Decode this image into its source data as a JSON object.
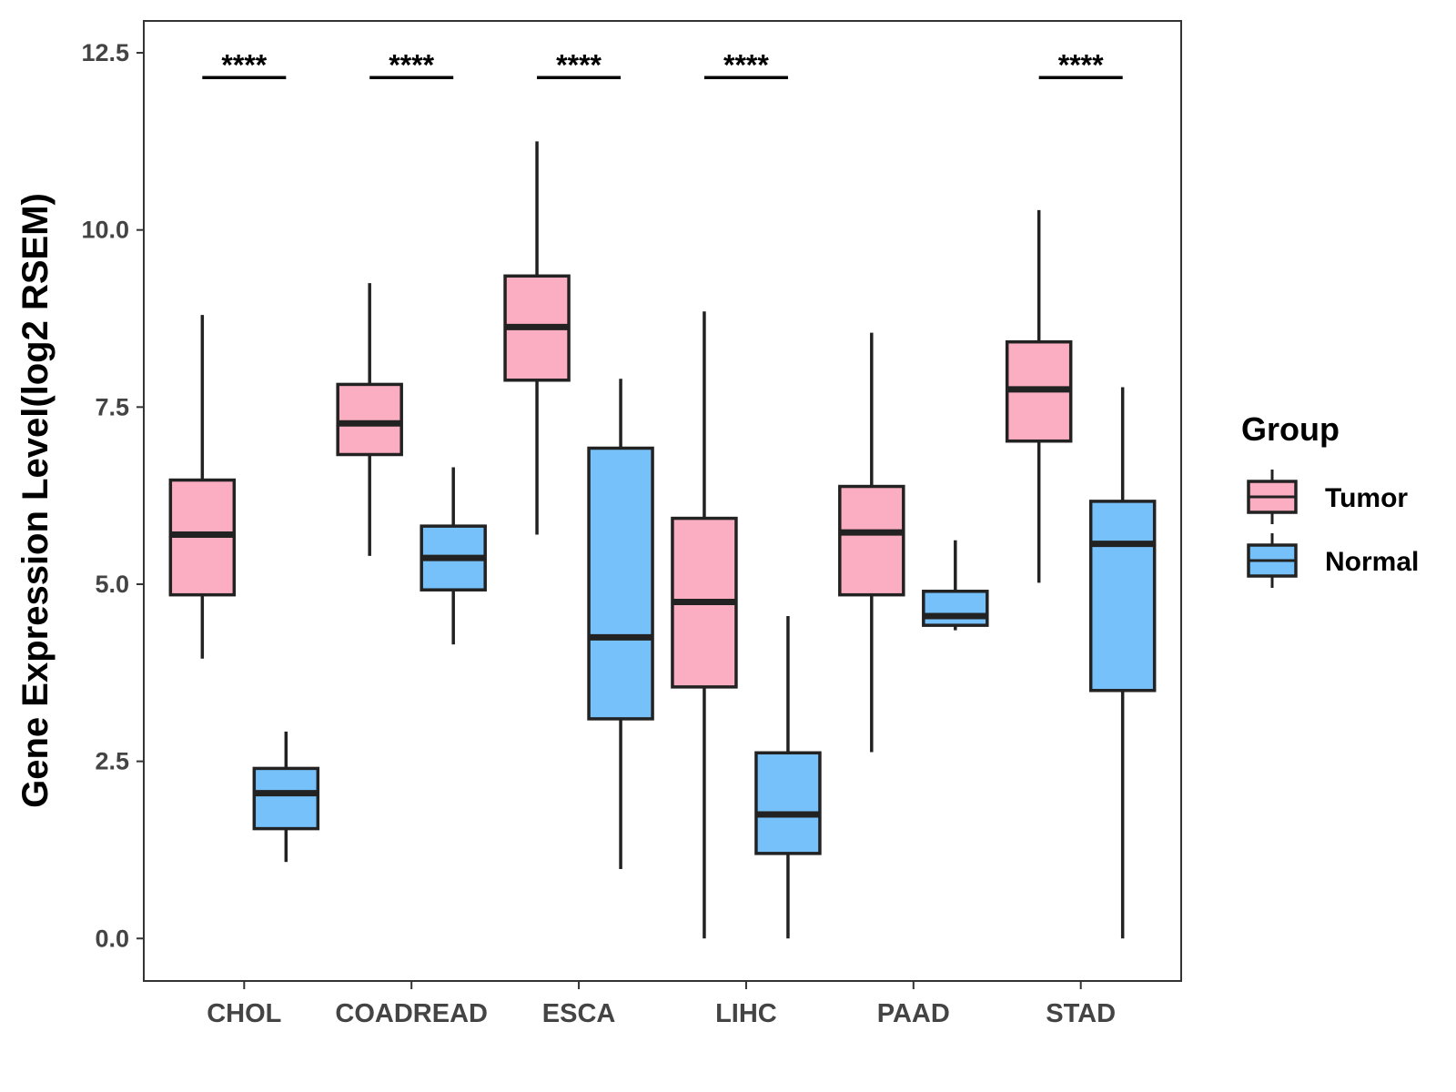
{
  "chart_data": {
    "type": "boxplot",
    "title": "",
    "xlabel": "",
    "ylabel": "Gene Expression Level(log2 RSEM)",
    "ylim": [
      -0.6,
      12.95
    ],
    "yticks": [
      0.0,
      2.5,
      5.0,
      7.5,
      10.0,
      12.5
    ],
    "ytick_labels": [
      "0.0",
      "2.5",
      "5.0",
      "7.5",
      "10.0",
      "12.5"
    ],
    "grid": false,
    "legend": {
      "title": "Group",
      "position": "right"
    },
    "categories": [
      "CHOL",
      "COADREAD",
      "ESCA",
      "LIHC",
      "PAAD",
      "STAD"
    ],
    "series": [
      {
        "name": "Tumor",
        "color": "#FBAEC1",
        "boxes": [
          {
            "min": 3.95,
            "q1": 4.85,
            "median": 5.7,
            "q3": 6.47,
            "max": 8.8
          },
          {
            "min": 5.4,
            "q1": 6.83,
            "median": 7.27,
            "q3": 7.82,
            "max": 9.25
          },
          {
            "min": 5.7,
            "q1": 7.88,
            "median": 8.63,
            "q3": 9.35,
            "max": 11.25
          },
          {
            "min": 0.0,
            "q1": 3.55,
            "median": 4.75,
            "q3": 5.93,
            "max": 8.85
          },
          {
            "min": 2.63,
            "q1": 4.85,
            "median": 5.73,
            "q3": 6.38,
            "max": 8.55
          },
          {
            "min": 5.02,
            "q1": 7.02,
            "median": 7.75,
            "q3": 8.42,
            "max": 10.28
          }
        ]
      },
      {
        "name": "Normal",
        "color": "#77C1FA",
        "boxes": [
          {
            "min": 1.08,
            "q1": 1.55,
            "median": 2.05,
            "q3": 2.4,
            "max": 2.92
          },
          {
            "min": 4.15,
            "q1": 4.92,
            "median": 5.37,
            "q3": 5.82,
            "max": 6.65
          },
          {
            "min": 0.98,
            "q1": 3.1,
            "median": 4.25,
            "q3": 6.92,
            "max": 7.9
          },
          {
            "min": 0.0,
            "q1": 1.2,
            "median": 1.75,
            "q3": 2.62,
            "max": 4.55
          },
          {
            "min": 4.35,
            "q1": 4.42,
            "median": 4.55,
            "q3": 4.9,
            "max": 5.62
          },
          {
            "min": 0.0,
            "q1": 3.5,
            "median": 5.57,
            "q3": 6.17,
            "max": 7.78
          }
        ]
      }
    ],
    "significance": [
      "****",
      "****",
      "****",
      "****",
      "",
      "****"
    ]
  }
}
